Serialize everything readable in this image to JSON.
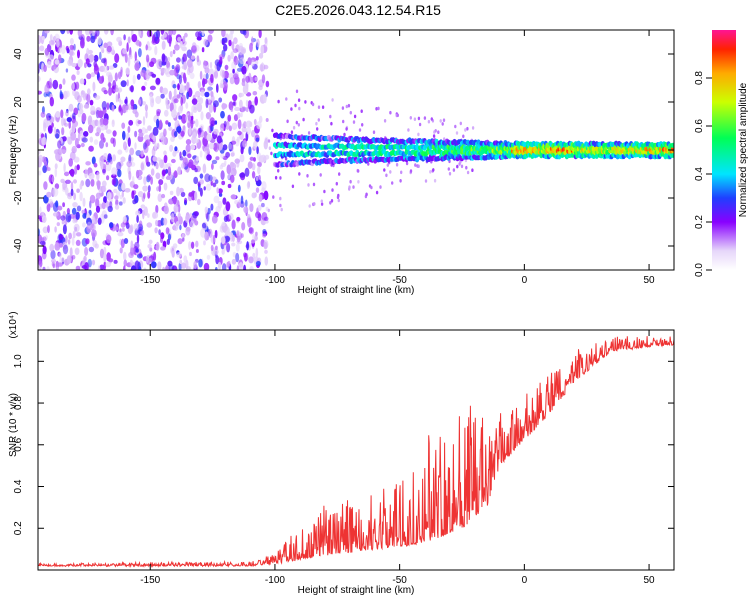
{
  "title": "C2E5.2026.043.12.54.R15",
  "colors": {
    "snr_line": "#ee3333",
    "spectrogram_sparse": "#7a22ee",
    "spectrogram_strong": "#ff2200",
    "frame": "#000000"
  },
  "chart_data": [
    {
      "type": "heatmap",
      "id": "spectrogram",
      "xlabel": "Height of straight line (km)",
      "ylabel": "Frequency (Hz)",
      "xlim": [
        -195,
        60
      ],
      "ylim": [
        -50,
        50
      ],
      "x_ticks": [
        -150,
        -100,
        -50,
        0,
        50
      ],
      "x_tick_labels": [
        "-150",
        "-100",
        "-50",
        "0",
        "50"
      ],
      "y_ticks": [
        -40,
        -20,
        0,
        20,
        40
      ],
      "y_tick_labels": [
        "-40",
        "-20",
        "0",
        "20",
        "40"
      ],
      "noise_region_km": [
        -195,
        -103
      ],
      "signal_band": [
        {
          "x": -100,
          "lo": -8,
          "hi": 8
        },
        {
          "x": -75,
          "lo": -6,
          "hi": 6
        },
        {
          "x": -50,
          "lo": -5,
          "hi": 5
        },
        {
          "x": -25,
          "lo": -4,
          "hi": 4
        },
        {
          "x": 0,
          "lo": -3,
          "hi": 3
        },
        {
          "x": 25,
          "lo": -3,
          "hi": 3
        },
        {
          "x": 60,
          "lo": -3,
          "hi": 3
        }
      ],
      "colorbar": {
        "label": "Normalized spectral amplitude",
        "range": [
          0,
          1
        ],
        "ticks": [
          0.0,
          0.2,
          0.4,
          0.6,
          0.8
        ],
        "tick_labels": [
          "0.0",
          "0.2",
          "0.4",
          "0.6",
          "0.8"
        ],
        "stops": [
          {
            "v": 0.0,
            "c": "#ffffff"
          },
          {
            "v": 0.08,
            "c": "#e6d6fa"
          },
          {
            "v": 0.2,
            "c": "#8800ff"
          },
          {
            "v": 0.3,
            "c": "#1f3fff"
          },
          {
            "v": 0.4,
            "c": "#00e5ff"
          },
          {
            "v": 0.55,
            "c": "#00ff55"
          },
          {
            "v": 0.7,
            "c": "#ccff00"
          },
          {
            "v": 0.82,
            "c": "#ffaa00"
          },
          {
            "v": 0.92,
            "c": "#ff2200"
          },
          {
            "v": 1.0,
            "c": "#ff1493"
          }
        ]
      }
    },
    {
      "type": "line",
      "id": "snr",
      "xlabel": "Height of straight line (km)",
      "ylabel": "SNR (10 * v/v)",
      "scale_label": "(x10⁴)",
      "xlim": [
        -195,
        60
      ],
      "ylim": [
        0,
        1.15
      ],
      "x_ticks": [
        -150,
        -100,
        -50,
        0,
        50
      ],
      "x_tick_labels": [
        "-150",
        "-100",
        "-50",
        "0",
        "50"
      ],
      "y_ticks": [
        0.2,
        0.4,
        0.6,
        0.8,
        1.0
      ],
      "y_tick_labels": [
        "0.2",
        "0.4",
        "0.6",
        "0.8",
        "1.0"
      ],
      "envelope": [
        {
          "x": -195,
          "base": 0.02,
          "peak": 0.03
        },
        {
          "x": -110,
          "base": 0.02,
          "peak": 0.04
        },
        {
          "x": -100,
          "base": 0.03,
          "peak": 0.08
        },
        {
          "x": -90,
          "base": 0.05,
          "peak": 0.22
        },
        {
          "x": -80,
          "base": 0.07,
          "peak": 0.32
        },
        {
          "x": -60,
          "base": 0.1,
          "peak": 0.38
        },
        {
          "x": -45,
          "base": 0.12,
          "peak": 0.5
        },
        {
          "x": -35,
          "base": 0.15,
          "peak": 0.75
        },
        {
          "x": -25,
          "base": 0.2,
          "peak": 0.85
        },
        {
          "x": -15,
          "base": 0.3,
          "peak": 0.7
        },
        {
          "x": -10,
          "base": 0.5,
          "peak": 0.75
        },
        {
          "x": 0,
          "base": 0.62,
          "peak": 0.85
        },
        {
          "x": 10,
          "base": 0.75,
          "peak": 0.95
        },
        {
          "x": 20,
          "base": 0.9,
          "peak": 1.05
        },
        {
          "x": 35,
          "base": 1.05,
          "peak": 1.12
        },
        {
          "x": 60,
          "base": 1.08,
          "peak": 1.12
        }
      ]
    }
  ]
}
